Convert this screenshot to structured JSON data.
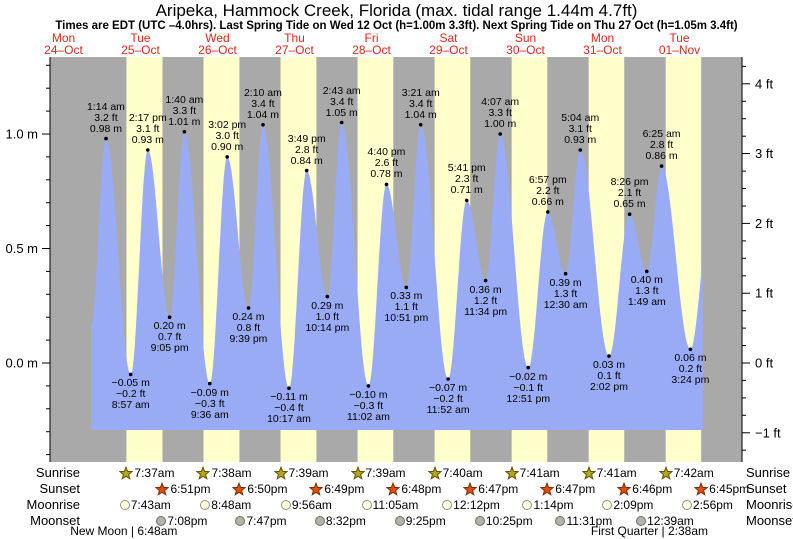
{
  "header": {
    "title": "Aripeka, Hammock Creek, Florida (max. tidal range 1.44m 4.7ft)",
    "subtitle": "Times are EDT (UTC –4.0hrs). Last Spring Tide on Wed 12 Oct (h=1.00m 3.3ft). Next Spring Tide on Thu 27 Oct (h=1.05m 3.4ft)"
  },
  "days": [
    {
      "name": "Mon",
      "date": "24–Oct"
    },
    {
      "name": "Tue",
      "date": "25–Oct"
    },
    {
      "name": "Wed",
      "date": "26–Oct"
    },
    {
      "name": "Thu",
      "date": "27–Oct"
    },
    {
      "name": "Fri",
      "date": "28–Oct"
    },
    {
      "name": "Sat",
      "date": "29–Oct"
    },
    {
      "name": "Sun",
      "date": "30–Oct"
    },
    {
      "name": "Mon",
      "date": "31–Oct"
    },
    {
      "name": "Tue",
      "date": "01–Nov"
    }
  ],
  "chart_data": {
    "type": "area",
    "title": "Tide height curve, Mon 24-Oct to Tue 01-Nov",
    "y_axis_left": {
      "unit": "m",
      "ticks": [
        {
          "label": "1.0 m",
          "value": 1.0
        },
        {
          "label": "0.5 m",
          "value": 0.5
        },
        {
          "label": "0.0 m",
          "value": 0.0
        }
      ]
    },
    "y_axis_right": {
      "unit": "ft",
      "ticks": [
        {
          "label": "4 ft",
          "value": 4
        },
        {
          "label": "3 ft",
          "value": 3
        },
        {
          "label": "2 ft",
          "value": 2
        },
        {
          "label": "1 ft",
          "value": 1
        },
        {
          "label": "0 ft",
          "value": 0
        },
        {
          "label": "−1 ft",
          "value": -1
        }
      ]
    },
    "curve_start": {
      "day": 0,
      "time": "8:35 pm",
      "h": 0.16
    },
    "curve_end": {
      "day": 8,
      "time": "9:25 pm",
      "h": 0.62
    },
    "extremes": [
      {
        "day": 1,
        "time": "1:14 am",
        "ft": "3.2 ft",
        "m": "0.98 m",
        "h": 0.98,
        "type": "high"
      },
      {
        "day": 1,
        "time": "8:57 am",
        "ft": "−0.2 ft",
        "m": "−0.05 m",
        "h": -0.05,
        "type": "low"
      },
      {
        "day": 1,
        "time": "2:17 pm",
        "ft": "3.1 ft",
        "m": "0.93 m",
        "h": 0.93,
        "type": "high"
      },
      {
        "day": 1,
        "time": "9:05 pm",
        "ft": "0.7 ft",
        "m": "0.20 m",
        "h": 0.2,
        "type": "low"
      },
      {
        "day": 2,
        "time": "1:40 am",
        "ft": "3.3 ft",
        "m": "1.01 m",
        "h": 1.01,
        "type": "high"
      },
      {
        "day": 2,
        "time": "9:36 am",
        "ft": "−0.3 ft",
        "m": "−0.09 m",
        "h": -0.09,
        "type": "low"
      },
      {
        "day": 2,
        "time": "3:02 pm",
        "ft": "3.0 ft",
        "m": "0.90 m",
        "h": 0.9,
        "type": "high"
      },
      {
        "day": 2,
        "time": "9:39 pm",
        "ft": "0.8 ft",
        "m": "0.24 m",
        "h": 0.24,
        "type": "low"
      },
      {
        "day": 3,
        "time": "2:10 am",
        "ft": "3.4 ft",
        "m": "1.04 m",
        "h": 1.04,
        "type": "high"
      },
      {
        "day": 3,
        "time": "10:17 am",
        "ft": "−0.4 ft",
        "m": "−0.11 m",
        "h": -0.11,
        "type": "low"
      },
      {
        "day": 3,
        "time": "3:49 pm",
        "ft": "2.8 ft",
        "m": "0.84 m",
        "h": 0.84,
        "type": "high"
      },
      {
        "day": 3,
        "time": "10:14 pm",
        "ft": "1.0 ft",
        "m": "0.29 m",
        "h": 0.29,
        "type": "low"
      },
      {
        "day": 4,
        "time": "2:43 am",
        "ft": "3.4 ft",
        "m": "1.05 m",
        "h": 1.05,
        "type": "high"
      },
      {
        "day": 4,
        "time": "11:02 am",
        "ft": "−0.3 ft",
        "m": "−0.10 m",
        "h": -0.1,
        "type": "low"
      },
      {
        "day": 4,
        "time": "4:40 pm",
        "ft": "2.6 ft",
        "m": "0.78 m",
        "h": 0.78,
        "type": "high"
      },
      {
        "day": 4,
        "time": "10:51 pm",
        "ft": "1.1 ft",
        "m": "0.33 m",
        "h": 0.33,
        "type": "low"
      },
      {
        "day": 5,
        "time": "3:21 am",
        "ft": "3.4 ft",
        "m": "1.04 m",
        "h": 1.04,
        "type": "high"
      },
      {
        "day": 5,
        "time": "11:52 am",
        "ft": "−0.2 ft",
        "m": "−0.07 m",
        "h": -0.07,
        "type": "low"
      },
      {
        "day": 5,
        "time": "5:41 pm",
        "ft": "2.3 ft",
        "m": "0.71 m",
        "h": 0.71,
        "type": "high"
      },
      {
        "day": 5,
        "time": "11:34 pm",
        "ft": "1.2 ft",
        "m": "0.36 m",
        "h": 0.36,
        "type": "low"
      },
      {
        "day": 6,
        "time": "4:07 am",
        "ft": "3.3 ft",
        "m": "1.00 m",
        "h": 1.0,
        "type": "high"
      },
      {
        "day": 6,
        "time": "12:51 pm",
        "ft": "−0.1 ft",
        "m": "−0.02 m",
        "h": -0.02,
        "type": "low"
      },
      {
        "day": 6,
        "time": "6:57 pm",
        "ft": "2.2 ft",
        "m": "0.66 m",
        "h": 0.66,
        "type": "high"
      },
      {
        "day": 7,
        "time": "12:30 am",
        "ft": "1.3 ft",
        "m": "0.39 m",
        "h": 0.39,
        "type": "low"
      },
      {
        "day": 7,
        "time": "5:04 am",
        "ft": "3.1 ft",
        "m": "0.93 m",
        "h": 0.93,
        "type": "high"
      },
      {
        "day": 7,
        "time": "2:02 pm",
        "ft": "0.1 ft",
        "m": "0.03 m",
        "h": 0.03,
        "type": "low"
      },
      {
        "day": 7,
        "time": "8:26 pm",
        "ft": "2.1 ft",
        "m": "0.65 m",
        "h": 0.65,
        "type": "high"
      },
      {
        "day": 8,
        "time": "1:49 am",
        "ft": "1.3 ft",
        "m": "0.40 m",
        "h": 0.4,
        "type": "low"
      },
      {
        "day": 8,
        "time": "6:25 am",
        "ft": "2.8 ft",
        "m": "0.86 m",
        "h": 0.86,
        "type": "high"
      },
      {
        "day": 8,
        "time": "3:24 pm",
        "ft": "0.2 ft",
        "m": "0.06 m",
        "h": 0.06,
        "type": "low"
      }
    ],
    "colors": {
      "night_band": "#a9a9a9",
      "daylight_band": "#ffffcc",
      "water": "#9aabf5",
      "day_label_red": "#e0261a",
      "sunrise_star_fill": "#b5a41f",
      "sunrise_star_stroke": "#5e5200",
      "sunset_star_fill": "#e14e0e",
      "sunset_star_stroke": "#7e2a00",
      "moonrise_fill": "#ffffd6",
      "moonrise_stroke": "#909090",
      "moonset_fill": "#b3b3ab",
      "moonset_stroke": "#6e6e6e"
    }
  },
  "almanac": {
    "row_labels": [
      "Sunrise",
      "Sunset",
      "Moonrise",
      "Moonset"
    ],
    "sunrise": [
      {
        "day": 1,
        "time": "7:37am"
      },
      {
        "day": 2,
        "time": "7:38am"
      },
      {
        "day": 3,
        "time": "7:39am"
      },
      {
        "day": 4,
        "time": "7:39am"
      },
      {
        "day": 5,
        "time": "7:40am"
      },
      {
        "day": 6,
        "time": "7:41am"
      },
      {
        "day": 7,
        "time": "7:41am"
      },
      {
        "day": 8,
        "time": "7:42am"
      }
    ],
    "sunset": [
      {
        "day": 1,
        "time": "6:51pm"
      },
      {
        "day": 2,
        "time": "6:50pm"
      },
      {
        "day": 3,
        "time": "6:49pm"
      },
      {
        "day": 4,
        "time": "6:48pm"
      },
      {
        "day": 5,
        "time": "6:47pm"
      },
      {
        "day": 6,
        "time": "6:47pm"
      },
      {
        "day": 7,
        "time": "6:46pm"
      },
      {
        "day": 8,
        "time": "6:45pm"
      }
    ],
    "moonrise": [
      {
        "day": 1,
        "time": "7:43am"
      },
      {
        "day": 2,
        "time": "8:48am"
      },
      {
        "day": 3,
        "time": "9:56am"
      },
      {
        "day": 4,
        "time": "11:05am"
      },
      {
        "day": 5,
        "time": "12:12pm"
      },
      {
        "day": 6,
        "time": "1:14pm"
      },
      {
        "day": 7,
        "time": "2:09pm"
      },
      {
        "day": 8,
        "time": "2:56pm"
      }
    ],
    "moonset": [
      {
        "day": 1,
        "time": "7:08pm"
      },
      {
        "day": 2,
        "time": "7:47pm"
      },
      {
        "day": 3,
        "time": "8:32pm"
      },
      {
        "day": 4,
        "time": "9:25pm"
      },
      {
        "day": 5,
        "time": "10:25pm"
      },
      {
        "day": 6,
        "time": "11:31pm"
      },
      {
        "day": 8,
        "time": "12:39am"
      }
    ],
    "phases": [
      {
        "label": "New Moon | 6:48am",
        "day": 1,
        "time": "6:48am"
      },
      {
        "label": "First Quarter | 2:38am",
        "day": 8,
        "time": "2:38am"
      }
    ]
  }
}
